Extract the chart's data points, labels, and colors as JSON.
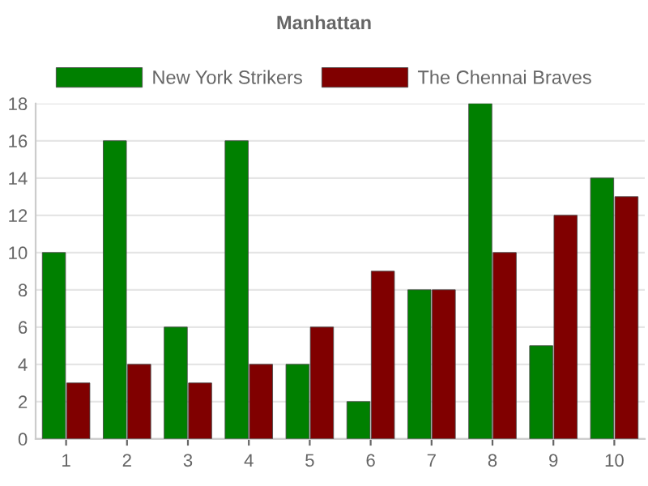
{
  "chart_data": {
    "type": "bar",
    "title": "Manhattan",
    "categories": [
      "1",
      "2",
      "3",
      "4",
      "5",
      "6",
      "7",
      "8",
      "9",
      "10"
    ],
    "series": [
      {
        "name": "New York Strikers",
        "color": "#008000",
        "values": [
          10,
          16,
          6,
          16,
          4,
          2,
          8,
          18,
          5,
          14
        ]
      },
      {
        "name": "The Chennai Braves",
        "color": "#800000",
        "values": [
          3,
          4,
          3,
          4,
          6,
          9,
          8,
          10,
          12,
          13
        ]
      }
    ],
    "ylim": [
      0,
      18
    ],
    "yticks": [
      0,
      2,
      4,
      6,
      8,
      10,
      12,
      14,
      16,
      18
    ],
    "grid": "y",
    "legend": "top"
  }
}
